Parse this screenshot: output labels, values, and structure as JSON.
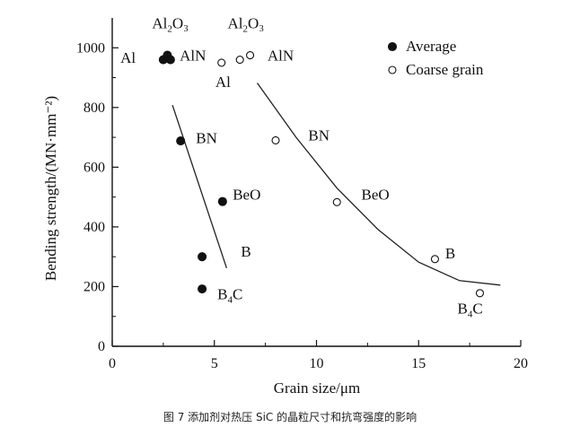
{
  "caption": "图 7 添加剂对热压 SiC 的晶粒尺寸和抗弯强度的影响",
  "chart_data": {
    "type": "scatter",
    "xlabel": "Grain size/μm",
    "ylabel": "Bending strength/(MN·mm⁻²)",
    "xlim": [
      0,
      20
    ],
    "ylim": [
      0,
      1100
    ],
    "xticks": [
      "0",
      "5",
      "10",
      "15",
      "20"
    ],
    "yticks": [
      "0",
      "200",
      "400",
      "600",
      "800",
      "1000"
    ],
    "xtick_values": [
      0,
      5,
      10,
      15,
      20
    ],
    "ytick_values": [
      0,
      200,
      400,
      600,
      800,
      1000
    ],
    "grid": false,
    "legend": "top-right",
    "series": [
      {
        "name": "Average",
        "marker": "filled-circle",
        "points": [
          {
            "x": 2.5,
            "y": 960
          },
          {
            "x": 2.7,
            "y": 975
          },
          {
            "x": 2.85,
            "y": 960
          },
          {
            "x": 3.35,
            "y": 688
          },
          {
            "x": 5.4,
            "y": 485
          },
          {
            "x": 4.4,
            "y": 300
          },
          {
            "x": 4.4,
            "y": 192
          }
        ]
      },
      {
        "name": "Coarse grain",
        "marker": "open-circle",
        "points": [
          {
            "x": 5.35,
            "y": 950
          },
          {
            "x": 6.25,
            "y": 960
          },
          {
            "x": 6.75,
            "y": 975
          },
          {
            "x": 8.0,
            "y": 690
          },
          {
            "x": 11.0,
            "y": 483
          },
          {
            "x": 15.8,
            "y": 292
          },
          {
            "x": 18.0,
            "y": 178
          }
        ]
      }
    ],
    "trend_lines": [
      {
        "name": "average-trend",
        "points": [
          {
            "x": 2.95,
            "y": 808
          },
          {
            "x": 5.6,
            "y": 262
          }
        ]
      },
      {
        "name": "coarse-trend",
        "points": [
          {
            "x": 7.1,
            "y": 882
          },
          {
            "x": 9.0,
            "y": 700
          },
          {
            "x": 11.0,
            "y": 530
          },
          {
            "x": 13.0,
            "y": 392
          },
          {
            "x": 15.0,
            "y": 282
          },
          {
            "x": 17.0,
            "y": 220
          },
          {
            "x": 19.0,
            "y": 205
          }
        ]
      }
    ],
    "annotations": [
      {
        "text": "Al",
        "sub": "",
        "after": "",
        "x": 0.4,
        "y": 950,
        "anchor": "start"
      },
      {
        "text": "Al",
        "sub": "2",
        "after": "O₃",
        "x": 1.95,
        "y": 1065,
        "anchor": "start"
      },
      {
        "text": "AlN",
        "sub": "",
        "after": "",
        "x": 3.3,
        "y": 957,
        "anchor": "start"
      },
      {
        "text": "Al",
        "sub": "2",
        "after": "O₃",
        "x": 5.65,
        "y": 1065,
        "anchor": "start"
      },
      {
        "text": "AlN",
        "sub": "",
        "after": "",
        "x": 7.6,
        "y": 957,
        "anchor": "start"
      },
      {
        "text": "Al",
        "sub": "",
        "after": "",
        "x": 5.05,
        "y": 868,
        "anchor": "start"
      },
      {
        "text": "BN",
        "sub": "",
        "after": "",
        "x": 4.1,
        "y": 680,
        "anchor": "start"
      },
      {
        "text": "BN",
        "sub": "",
        "after": "",
        "x": 9.6,
        "y": 690,
        "anchor": "start"
      },
      {
        "text": "BeO",
        "sub": "",
        "after": "",
        "x": 5.9,
        "y": 492,
        "anchor": "start"
      },
      {
        "text": "BeO",
        "sub": "",
        "after": "",
        "x": 12.2,
        "y": 492,
        "anchor": "start"
      },
      {
        "text": "B",
        "sub": "",
        "after": "",
        "x": 6.3,
        "y": 300,
        "anchor": "start"
      },
      {
        "text": "B",
        "sub": "",
        "after": "",
        "x": 16.3,
        "y": 295,
        "anchor": "start"
      },
      {
        "text": "B",
        "sub": "4",
        "after": "C",
        "x": 5.15,
        "y": 158,
        "anchor": "start"
      },
      {
        "text": "B",
        "sub": "4",
        "after": "C",
        "x": 16.9,
        "y": 110,
        "anchor": "start"
      }
    ]
  }
}
